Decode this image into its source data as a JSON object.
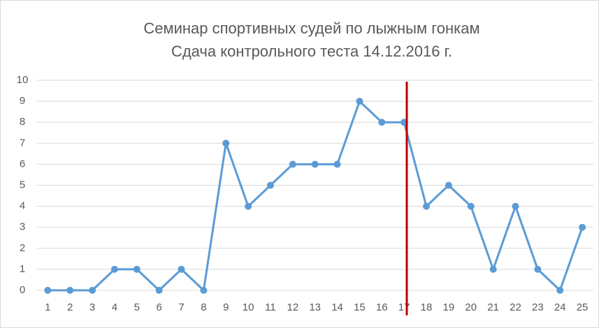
{
  "chart_data": {
    "type": "line",
    "title": "Семинар спортивных судей по лыжным гонкам",
    "subtitle": "Сдача контрольного теста 14.12.2016 г.",
    "categories": [
      "1",
      "2",
      "3",
      "4",
      "5",
      "6",
      "7",
      "8",
      "9",
      "10",
      "11",
      "12",
      "13",
      "14",
      "15",
      "16",
      "17",
      "18",
      "19",
      "20",
      "21",
      "22",
      "23",
      "24",
      "25"
    ],
    "series": [
      {
        "color": "#5b9bd5",
        "values": [
          0,
          0,
          0,
          1,
          1,
          0,
          1,
          0,
          7,
          4,
          5,
          6,
          6,
          6,
          9,
          8,
          8,
          4,
          5,
          4,
          1,
          4,
          1,
          0,
          3
        ]
      }
    ],
    "ylim": [
      0,
      10
    ],
    "yticks": [
      0,
      1,
      2,
      3,
      4,
      5,
      6,
      7,
      8,
      9,
      10
    ],
    "grid": true
  }
}
